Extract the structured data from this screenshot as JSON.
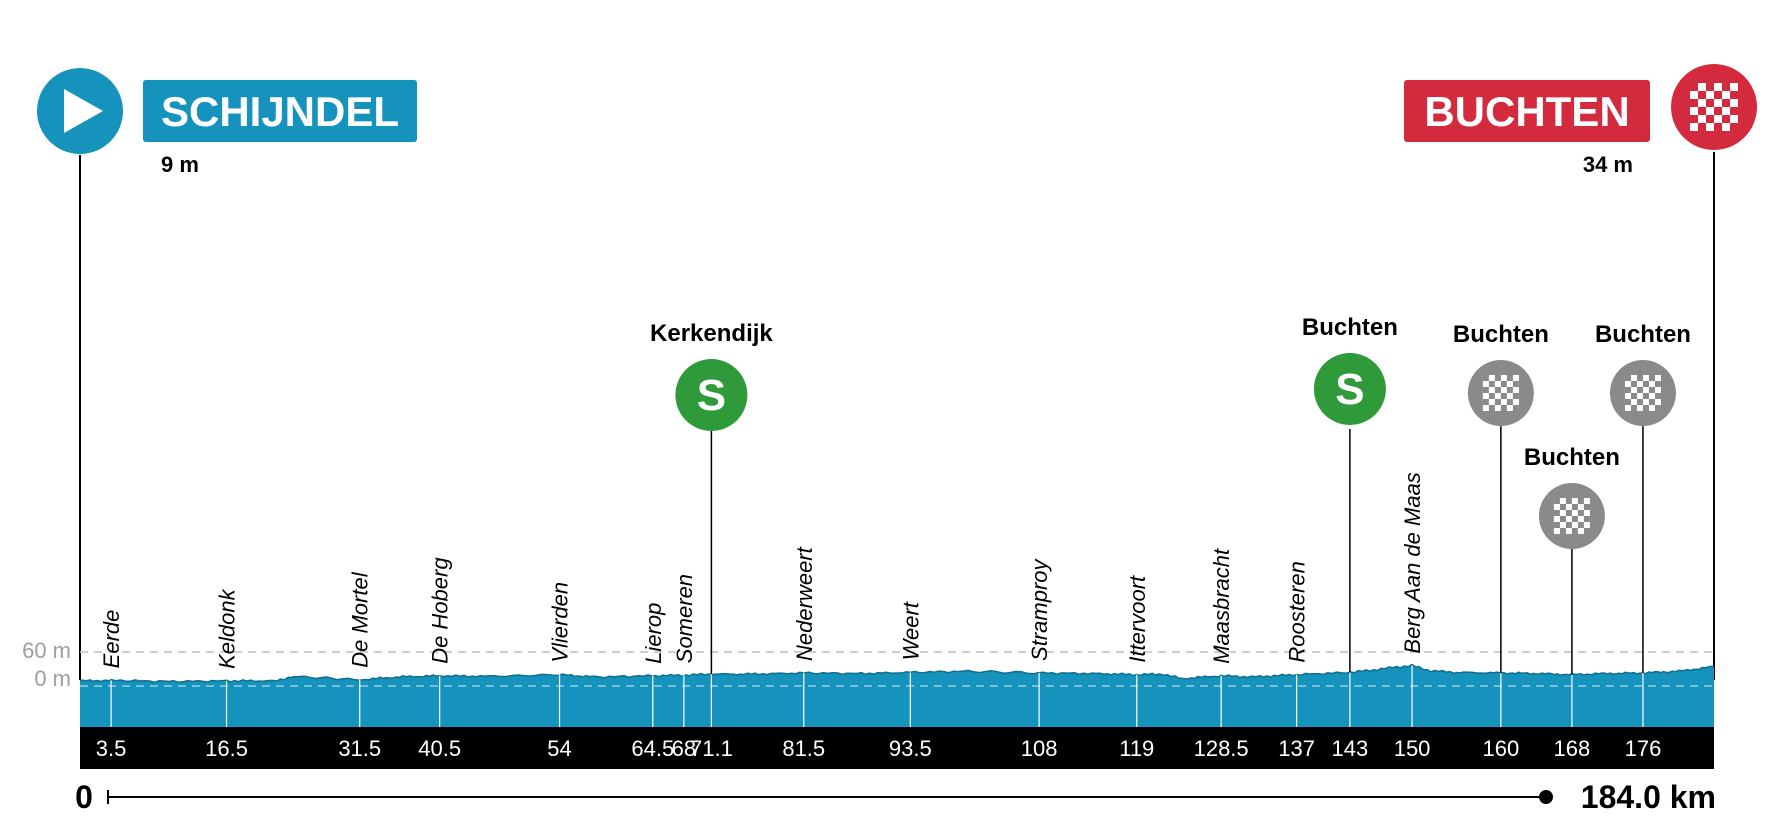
{
  "colors": {
    "profile_fill": "#1593bd",
    "profile_top": "#0f6e8f",
    "start": "#1593bd",
    "finish": "#d32a3e",
    "sprint": "#2e9a3a",
    "intermediate": "#8a8a8a",
    "axis_band": "#000000",
    "gridline": "#bdbdbd"
  },
  "start": {
    "name": "SCHIJNDEL",
    "altitude": "9 m",
    "icon": "play-icon"
  },
  "finish": {
    "name": "BUCHTEN",
    "altitude": "34 m",
    "icon": "checkered-flag-icon"
  },
  "chart_data": {
    "type": "area",
    "title": "",
    "xlabel": "",
    "ylabel": "",
    "xlim": [
      0,
      184.0
    ],
    "ylim": [
      0,
      60
    ],
    "y_ticks": [
      "60 m",
      "0 m"
    ],
    "distance_start_label": "0",
    "distance_end_label": "184.0 km",
    "profile": {
      "x": [
        0,
        3.5,
        10,
        16.5,
        22,
        24,
        31.5,
        36,
        40.5,
        46,
        54,
        58,
        64.5,
        68,
        71.1,
        76,
        81.5,
        88,
        93.5,
        100,
        108,
        114,
        119,
        122,
        124,
        128.5,
        132,
        137,
        143,
        145,
        148,
        150,
        152,
        155,
        160,
        164,
        168,
        172,
        176,
        180,
        184
      ],
      "y": [
        9,
        10,
        8,
        9,
        9,
        17,
        11,
        16,
        18,
        17,
        20,
        16,
        18,
        19,
        21,
        21,
        23,
        22,
        24,
        26,
        23,
        22,
        20,
        21,
        13,
        18,
        16,
        20,
        24,
        27,
        33,
        36,
        27,
        24,
        23,
        22,
        20,
        22,
        23,
        26,
        34
      ]
    },
    "km_markers": [
      {
        "km": 3.5,
        "label": "3.5",
        "place": "Eerde"
      },
      {
        "km": 16.5,
        "label": "16.5",
        "place": "Keldonk"
      },
      {
        "km": 31.5,
        "label": "31.5",
        "place": "De Mortel"
      },
      {
        "km": 40.5,
        "label": "40.5",
        "place": "De Hoberg"
      },
      {
        "km": 54,
        "label": "54",
        "place": "Vlierden"
      },
      {
        "km": 64.5,
        "label": "64.5",
        "place": "Lierop"
      },
      {
        "km": 68,
        "label": "68",
        "place": "Someren"
      },
      {
        "km": 71.1,
        "label": "71.1",
        "place": ""
      },
      {
        "km": 81.5,
        "label": "81.5",
        "place": "Nederweert"
      },
      {
        "km": 93.5,
        "label": "93.5",
        "place": "Weert"
      },
      {
        "km": 108,
        "label": "108",
        "place": "Stramproy"
      },
      {
        "km": 119,
        "label": "119",
        "place": "Ittervoort"
      },
      {
        "km": 128.5,
        "label": "128.5",
        "place": "Maasbracht"
      },
      {
        "km": 137,
        "label": "137",
        "place": "Roosteren"
      },
      {
        "km": 143,
        "label": "143",
        "place": ""
      },
      {
        "km": 150,
        "label": "150",
        "place": "Berg Aan de Maas"
      },
      {
        "km": 160,
        "label": "160",
        "place": ""
      },
      {
        "km": 168,
        "label": "168",
        "place": ""
      },
      {
        "km": 176,
        "label": "176",
        "place": ""
      }
    ],
    "points": [
      {
        "km": 71.1,
        "type": "sprint",
        "symbol": "S",
        "name": "Kerkendijk",
        "level": "high"
      },
      {
        "km": 143,
        "type": "sprint",
        "symbol": "S",
        "name": "Buchten",
        "level": "high"
      },
      {
        "km": 160,
        "type": "intermediate",
        "symbol": "",
        "name": "Buchten",
        "level": "high"
      },
      {
        "km": 168,
        "type": "intermediate",
        "symbol": "",
        "name": "Buchten",
        "level": "low"
      },
      {
        "km": 176,
        "type": "intermediate",
        "symbol": "",
        "name": "Buchten",
        "level": "high"
      }
    ]
  }
}
